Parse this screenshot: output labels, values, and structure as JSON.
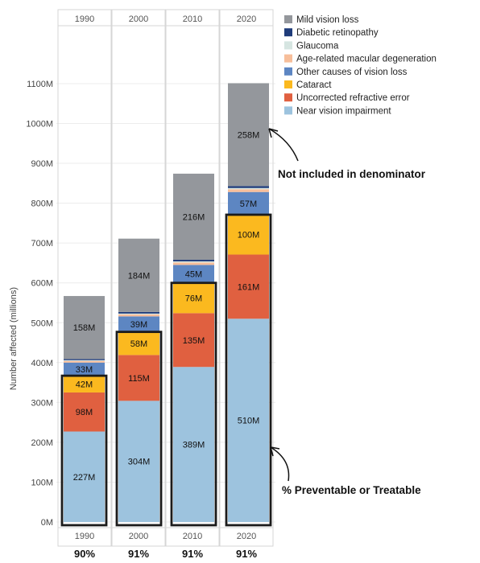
{
  "chart_data": {
    "type": "bar",
    "stacked": true,
    "categories": [
      "1990",
      "2000",
      "2010",
      "2020"
    ],
    "ylabel": "Number affected (millions)",
    "ylim": [
      0,
      1100
    ],
    "yticks": [
      0,
      100,
      200,
      300,
      400,
      500,
      600,
      700,
      800,
      900,
      1000,
      1100
    ],
    "ytick_labels": [
      "0M",
      "100M",
      "200M",
      "300M",
      "400M",
      "500M",
      "600M",
      "700M",
      "800M",
      "900M",
      "1000M",
      "1100M"
    ],
    "series": [
      {
        "name": "Near vision impairment",
        "color": "#9DC3DE",
        "values": [
          227,
          304,
          389,
          510
        ],
        "labels": [
          "227M",
          "304M",
          "389M",
          "510M"
        ]
      },
      {
        "name": "Uncorrected refractive error",
        "color": "#E06040",
        "values": [
          98,
          115,
          135,
          161
        ],
        "labels": [
          "98M",
          "115M",
          "135M",
          "161M"
        ]
      },
      {
        "name": "Cataract",
        "color": "#FBB91F",
        "values": [
          42,
          58,
          76,
          100
        ],
        "labels": [
          "42M",
          "58M",
          "76M",
          "100M"
        ]
      },
      {
        "name": "Other causes of vision loss",
        "color": "#5D86C2",
        "values": [
          33,
          39,
          45,
          57
        ],
        "labels": [
          "33M",
          "39M",
          "45M",
          "57M"
        ]
      },
      {
        "name": "Age-related macular degeneration",
        "color": "#F7BE9A",
        "values": [
          4,
          5,
          6,
          7
        ],
        "labels": [
          "",
          "",
          "",
          ""
        ]
      },
      {
        "name": "Glaucoma",
        "color": "#D6E5E1",
        "values": [
          2,
          2,
          3,
          3
        ],
        "labels": [
          "",
          "",
          "",
          ""
        ]
      },
      {
        "name": "Diabetic retinopathy",
        "color": "#1F3C7A",
        "values": [
          3,
          4,
          4,
          5
        ],
        "labels": [
          "",
          "",
          "",
          ""
        ]
      },
      {
        "name": "Mild vision loss",
        "color": "#94979C",
        "values": [
          158,
          184,
          216,
          258
        ],
        "labels": [
          "158M",
          "184M",
          "216M",
          "258M"
        ]
      }
    ],
    "legend_order": [
      "Mild vision loss",
      "Diabetic retinopathy",
      "Glaucoma",
      "Age-related macular degeneration",
      "Other causes of vision loss",
      "Cataract",
      "Uncorrected refractive error",
      "Near vision impairment"
    ],
    "legend_position": "top-right",
    "highlight_series_count": 3,
    "bottom_labels": [
      "90%",
      "91%",
      "91%",
      "91%"
    ],
    "annotations": [
      {
        "text": "Not included in denominator"
      },
      {
        "text": "% Preventable or Treatable"
      }
    ]
  }
}
